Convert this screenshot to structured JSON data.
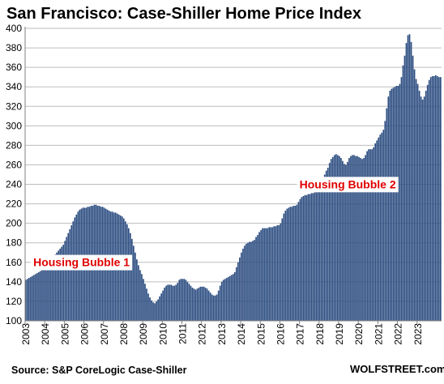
{
  "title": "San Francisco: Case-Shiller Home Price Index",
  "source": "Source: S&P CoreLogic Case-Shiller",
  "brand": "WOLFSTREET.com",
  "colors": {
    "bar": "#2b4c80",
    "bar_edge": "#1d3561",
    "annotation": "#e00000",
    "grid": "#bdbdbd",
    "axis": "#808080"
  },
  "chart_data": {
    "type": "bar",
    "frequency": "monthly",
    "x_start": "2003-01",
    "ylim": [
      100,
      400
    ],
    "yticks": [
      100,
      120,
      140,
      160,
      180,
      200,
      220,
      240,
      260,
      280,
      300,
      320,
      340,
      360,
      380,
      400
    ],
    "xticks": [
      "2003",
      "2004",
      "2005",
      "2006",
      "2007",
      "2008",
      "2009",
      "2010",
      "2011",
      "2012",
      "2013",
      "2014",
      "2015",
      "2016",
      "2017",
      "2018",
      "2019",
      "2020",
      "2021",
      "2022",
      "2023"
    ],
    "grid": true,
    "legend": "none",
    "annotations": [
      {
        "text": "Housing Bubble 1",
        "x": "2003-06",
        "y": 156
      },
      {
        "text": "Housing Bubble 2",
        "x": "2017-01",
        "y": 236
      }
    ],
    "values": [
      142,
      143,
      144,
      145,
      146,
      147,
      148,
      149,
      150,
      151,
      152,
      154,
      156,
      158,
      160,
      162,
      164,
      166,
      168,
      170,
      172,
      174,
      176,
      178,
      182,
      186,
      190,
      194,
      198,
      202,
      206,
      209,
      212,
      214,
      215,
      216,
      216,
      216,
      217,
      217,
      218,
      218,
      219,
      219,
      218,
      218,
      217,
      217,
      216,
      215,
      214,
      213,
      212,
      212,
      211,
      211,
      210,
      209,
      208,
      207,
      205,
      202,
      199,
      195,
      190,
      184,
      177,
      170,
      163,
      157,
      152,
      148,
      143,
      138,
      133,
      128,
      124,
      121,
      119,
      118,
      120,
      122,
      125,
      128,
      131,
      134,
      136,
      137,
      137,
      137,
      136,
      136,
      137,
      139,
      142,
      143,
      143,
      143,
      142,
      140,
      138,
      136,
      134,
      133,
      132,
      133,
      134,
      135,
      135,
      135,
      134,
      133,
      131,
      129,
      127,
      126,
      126,
      127,
      131,
      136,
      140,
      142,
      143,
      144,
      145,
      146,
      147,
      148,
      150,
      155,
      160,
      165,
      170,
      174,
      177,
      179,
      180,
      181,
      181,
      182,
      183,
      186,
      188,
      191,
      193,
      195,
      195,
      195,
      195,
      196,
      196,
      196,
      197,
      197,
      198,
      198,
      200,
      205,
      210,
      213,
      215,
      216,
      217,
      217,
      218,
      218,
      219,
      222,
      225,
      227,
      228,
      229,
      229,
      230,
      230,
      231,
      231,
      232,
      232,
      234,
      238,
      242,
      246,
      250,
      254,
      257,
      262,
      266,
      268,
      270,
      271,
      270,
      269,
      267,
      264,
      261,
      260,
      263,
      267,
      269,
      270,
      270,
      269,
      269,
      268,
      267,
      266,
      267,
      270,
      274,
      276,
      276,
      276,
      278,
      282,
      285,
      288,
      291,
      293,
      296,
      305,
      318,
      330,
      336,
      338,
      339,
      340,
      341,
      341,
      343,
      350,
      362,
      372,
      385,
      393,
      394,
      386,
      372,
      358,
      348,
      343,
      336,
      330,
      327,
      330,
      336,
      342,
      347,
      350,
      351,
      351,
      352,
      351,
      350,
      350
    ]
  }
}
